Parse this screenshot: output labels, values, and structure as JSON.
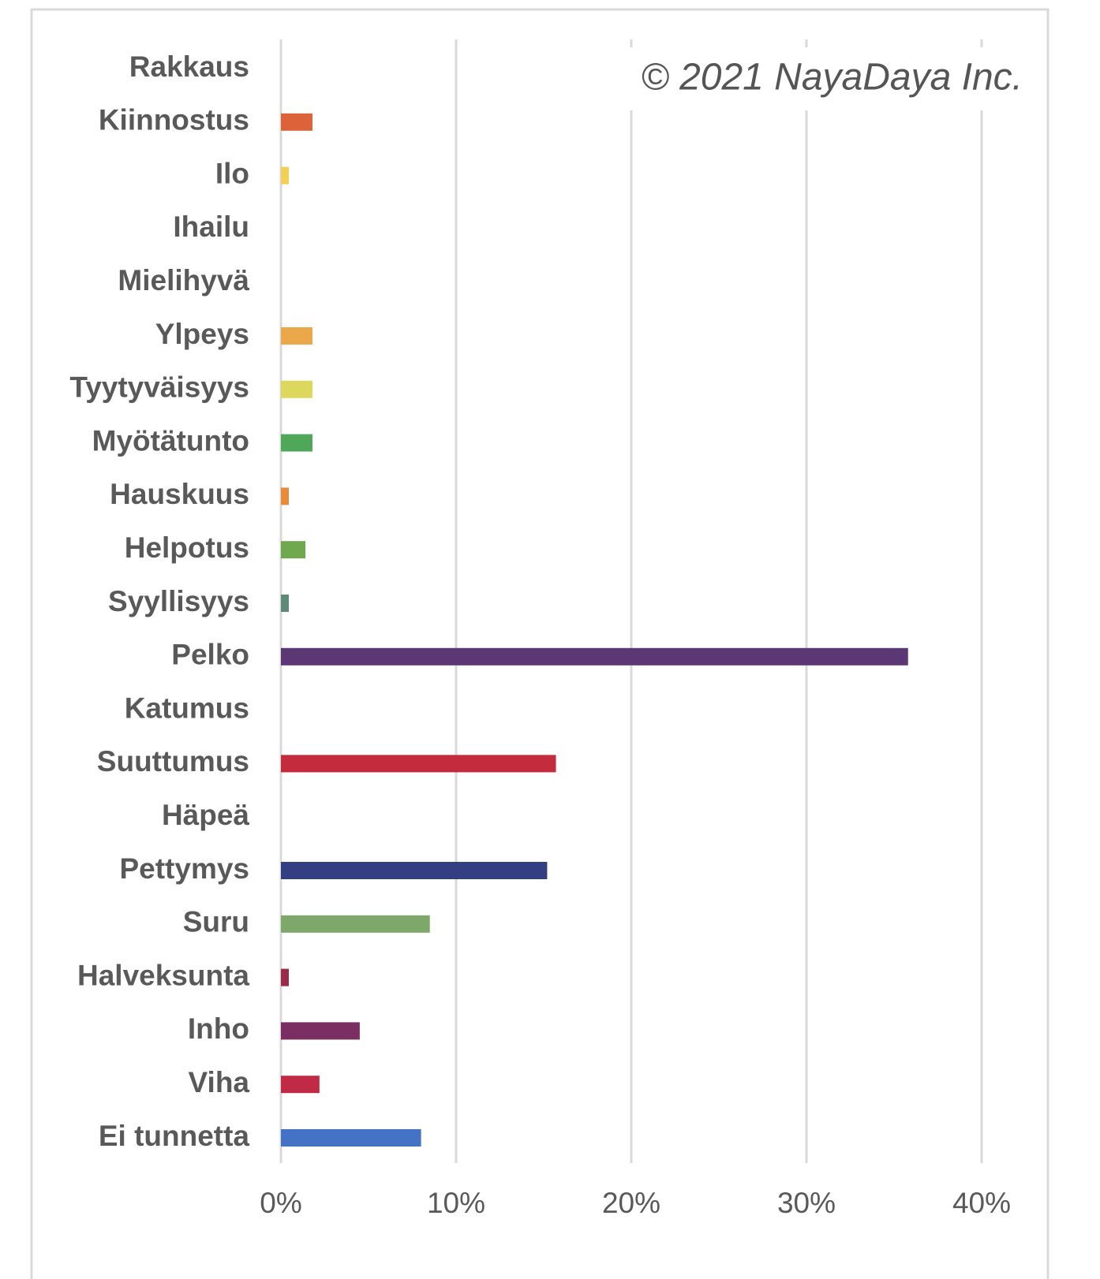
{
  "chart_data": {
    "type": "bar",
    "orientation": "horizontal",
    "annotation": "© 2021 NayaDaya Inc.",
    "categories": [
      "Rakkaus",
      "Kiinnostus",
      "Ilo",
      "Ihailu",
      "Mielihyvä",
      "Ylpeys",
      "Tyytyväisyys",
      "Myötätunto",
      "Hauskuus",
      "Helpotus",
      "Syyllisyys",
      "Pelko",
      "Katumus",
      "Suuttumus",
      "Häpeä",
      "Pettymys",
      "Suru",
      "Halveksunta",
      "Inho",
      "Viha",
      "Ei tunnetta"
    ],
    "values": [
      0,
      1.8,
      0.45,
      0,
      0,
      1.8,
      1.8,
      1.8,
      0.45,
      1.4,
      0.45,
      35.8,
      0,
      15.7,
      0,
      15.2,
      8.5,
      0.45,
      4.5,
      2.2,
      8.0
    ],
    "colors": [
      "#c0392b",
      "#dc6239",
      "#f2cf55",
      "#e08060",
      "#e0a050",
      "#eaa84a",
      "#dcd85e",
      "#4fa85a",
      "#e88a3c",
      "#6fa84e",
      "#5e8a78",
      "#5b3874",
      "#888888",
      "#c42b3c",
      "#aa5577",
      "#333f82",
      "#7ea86a",
      "#9a2a4a",
      "#7b2e62",
      "#c02a44",
      "#4472c4"
    ],
    "xlim": [
      0,
      40
    ],
    "xticks": [
      {
        "value": 0,
        "label": "0%"
      },
      {
        "value": 10,
        "label": "10%"
      },
      {
        "value": 20,
        "label": "20%"
      },
      {
        "value": 30,
        "label": "30%"
      },
      {
        "value": 40,
        "label": "40%"
      }
    ],
    "grid": true
  }
}
